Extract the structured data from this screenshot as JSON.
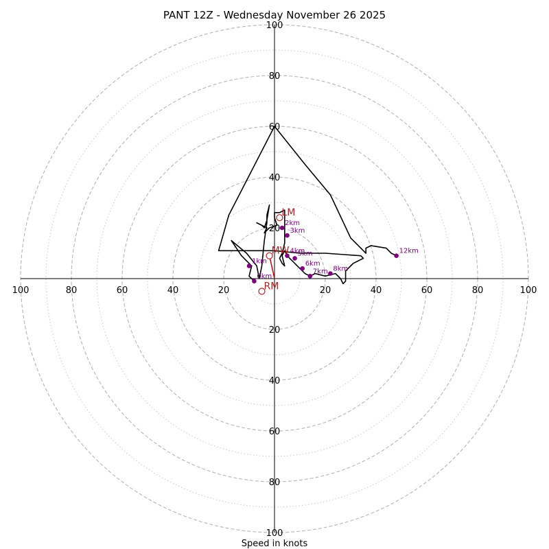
{
  "chart_data": {
    "type": "hodograph",
    "title": "PANT 12Z - Wednesday November 26 2025",
    "xlabel": "Speed in knots",
    "max_speed": 100,
    "ring_speeds_dashed": [
      20,
      40,
      60,
      80,
      100
    ],
    "ring_speeds_dotted": [
      10,
      30,
      50,
      70,
      90
    ],
    "tick_labels": {
      "top": [
        "20",
        "40",
        "60",
        "80",
        "100"
      ],
      "bottom": [
        "20",
        "40",
        "60",
        "80",
        "100"
      ],
      "left": [
        "20",
        "40",
        "60",
        "80",
        "100"
      ],
      "right": [
        "20",
        "40",
        "60",
        "80",
        "100"
      ]
    },
    "trace_uv": [
      [
        -8,
        -1
      ],
      [
        -10,
        1
      ],
      [
        -9,
        5
      ],
      [
        -13,
        9
      ],
      [
        -15,
        12
      ],
      [
        -17,
        15
      ],
      [
        -11,
        10
      ],
      [
        -7,
        5
      ],
      [
        -6,
        0
      ],
      [
        -5,
        5
      ],
      [
        -4,
        15
      ],
      [
        -3,
        22
      ],
      [
        -3,
        25
      ],
      [
        -2,
        29
      ],
      [
        -3,
        23
      ],
      [
        -4,
        20
      ],
      [
        -5,
        21
      ],
      [
        -7,
        22
      ],
      [
        -3,
        20
      ],
      [
        -4,
        18
      ],
      [
        -2,
        20
      ],
      [
        1,
        21
      ],
      [
        0,
        24
      ],
      [
        0,
        26
      ],
      [
        2,
        26
      ],
      [
        4,
        27
      ],
      [
        4,
        22
      ],
      [
        4,
        17
      ],
      [
        4,
        14
      ],
      [
        3,
        10
      ],
      [
        2,
        8
      ],
      [
        3,
        6
      ],
      [
        4,
        5
      ],
      [
        3,
        9
      ],
      [
        4,
        11
      ],
      [
        5,
        9
      ],
      [
        6,
        8
      ],
      [
        10,
        4
      ],
      [
        12,
        2
      ],
      [
        14,
        1
      ],
      [
        16,
        2
      ],
      [
        20,
        1
      ],
      [
        24,
        2
      ],
      [
        26,
        0
      ],
      [
        27,
        -2
      ],
      [
        28,
        -1
      ],
      [
        28,
        3
      ],
      [
        30,
        5
      ],
      [
        31,
        6
      ],
      [
        35,
        8
      ],
      [
        34,
        9
      ],
      [
        20,
        10
      ],
      [
        10,
        10
      ],
      [
        0,
        11
      ],
      [
        -10,
        11
      ],
      [
        -22,
        11
      ],
      [
        -18,
        25
      ],
      [
        0,
        60
      ],
      [
        12,
        45
      ],
      [
        22,
        33
      ],
      [
        30,
        16
      ],
      [
        36,
        10
      ],
      [
        36,
        12
      ],
      [
        38,
        13
      ],
      [
        44,
        12
      ],
      [
        46,
        10
      ],
      [
        48,
        9
      ]
    ],
    "height_markers": [
      {
        "label": "0km",
        "u": -8,
        "v": -1
      },
      {
        "label": "1km",
        "u": -10,
        "v": 5
      },
      {
        "label": "2km",
        "u": 3,
        "v": 20
      },
      {
        "label": "3km",
        "u": 5,
        "v": 17
      },
      {
        "label": "4km",
        "u": 5,
        "v": 9
      },
      {
        "label": "5km",
        "u": 8,
        "v": 8
      },
      {
        "label": "6km",
        "u": 11,
        "v": 4
      },
      {
        "label": "7km",
        "u": 14,
        "v": 1
      },
      {
        "label": "8km",
        "u": 22,
        "v": 2
      },
      {
        "label": "12km",
        "u": 48,
        "v": 9
      }
    ],
    "motion_markers": [
      {
        "label": "LM",
        "u": 2,
        "v": 24
      },
      {
        "label": "MW",
        "u": -2,
        "v": 9
      },
      {
        "label": "RM",
        "u": -5,
        "v": -5
      }
    ],
    "rm_vector": {
      "from_u": 0,
      "from_v": 0,
      "to_u": -2,
      "to_v": 9
    }
  }
}
